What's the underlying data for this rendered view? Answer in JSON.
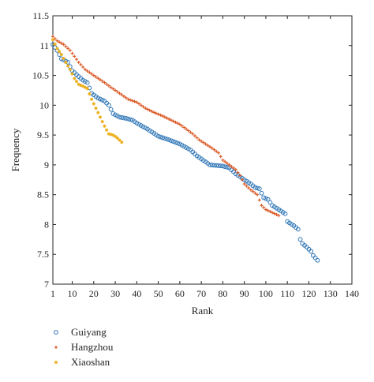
{
  "chart_data": {
    "type": "scatter",
    "xlabel": "Rank",
    "ylabel": "Frequency",
    "xlim": [
      1,
      140
    ],
    "ylim": [
      7,
      11.5
    ],
    "xticks": [
      1,
      10,
      20,
      30,
      40,
      50,
      60,
      70,
      80,
      90,
      100,
      110,
      120,
      130,
      140
    ],
    "yticks": [
      7,
      7.5,
      8,
      8.5,
      9,
      9.5,
      10,
      10.5,
      11,
      11.5
    ],
    "legend_position": "bottom-left-outside",
    "series": [
      {
        "name": "Guiyang",
        "marker": "circle-open",
        "color": "#2e75b6",
        "anchors": [
          [
            1,
            11.02
          ],
          [
            3,
            10.92
          ],
          [
            5,
            10.78
          ],
          [
            8,
            10.72
          ],
          [
            10,
            10.58
          ],
          [
            13,
            10.48
          ],
          [
            15,
            10.42
          ],
          [
            17,
            10.38
          ],
          [
            19,
            10.2
          ],
          [
            22,
            10.12
          ],
          [
            25,
            10.07
          ],
          [
            27,
            10.0
          ],
          [
            29,
            9.86
          ],
          [
            32,
            9.8
          ],
          [
            35,
            9.78
          ],
          [
            38,
            9.75
          ],
          [
            40,
            9.7
          ],
          [
            45,
            9.6
          ],
          [
            50,
            9.48
          ],
          [
            55,
            9.42
          ],
          [
            60,
            9.35
          ],
          [
            65,
            9.25
          ],
          [
            68,
            9.15
          ],
          [
            70,
            9.1
          ],
          [
            72,
            9.05
          ],
          [
            74,
            9.0
          ],
          [
            80,
            8.98
          ],
          [
            83,
            8.95
          ],
          [
            86,
            8.85
          ],
          [
            90,
            8.75
          ],
          [
            93,
            8.68
          ],
          [
            95,
            8.62
          ],
          [
            97,
            8.6
          ],
          [
            99,
            8.45
          ],
          [
            101,
            8.42
          ],
          [
            103,
            8.32
          ],
          [
            106,
            8.25
          ],
          [
            109,
            8.18
          ],
          [
            110,
            8.05
          ],
          [
            113,
            7.98
          ],
          [
            115,
            7.92
          ],
          [
            116,
            7.75
          ],
          [
            117,
            7.68
          ],
          [
            119,
            7.62
          ],
          [
            121,
            7.55
          ],
          [
            122,
            7.48
          ],
          [
            124,
            7.4
          ]
        ]
      },
      {
        "name": "Hangzhou",
        "marker": "plus",
        "color": "#d9531e",
        "anchors": [
          [
            1,
            11.15
          ],
          [
            3,
            11.08
          ],
          [
            6,
            11.02
          ],
          [
            9,
            10.92
          ],
          [
            11,
            10.82
          ],
          [
            13,
            10.72
          ],
          [
            16,
            10.6
          ],
          [
            20,
            10.5
          ],
          [
            25,
            10.38
          ],
          [
            28,
            10.3
          ],
          [
            32,
            10.2
          ],
          [
            36,
            10.1
          ],
          [
            40,
            10.05
          ],
          [
            44,
            9.95
          ],
          [
            48,
            9.88
          ],
          [
            52,
            9.82
          ],
          [
            56,
            9.75
          ],
          [
            60,
            9.68
          ],
          [
            63,
            9.6
          ],
          [
            66,
            9.52
          ],
          [
            69,
            9.42
          ],
          [
            72,
            9.35
          ],
          [
            75,
            9.28
          ],
          [
            78,
            9.2
          ],
          [
            80,
            9.08
          ],
          [
            83,
            9.0
          ],
          [
            86,
            8.92
          ],
          [
            88,
            8.82
          ],
          [
            90,
            8.68
          ],
          [
            93,
            8.58
          ],
          [
            96,
            8.5
          ],
          [
            98,
            8.32
          ],
          [
            100,
            8.25
          ],
          [
            103,
            8.2
          ],
          [
            106,
            8.15
          ]
        ]
      },
      {
        "name": "Xiaoshan",
        "marker": "asterisk",
        "color": "#edb120",
        "anchors": [
          [
            1,
            11.1
          ],
          [
            3,
            10.95
          ],
          [
            5,
            10.85
          ],
          [
            7,
            10.72
          ],
          [
            9,
            10.6
          ],
          [
            11,
            10.45
          ],
          [
            13,
            10.35
          ],
          [
            15,
            10.32
          ],
          [
            17,
            10.28
          ],
          [
            19,
            10.1
          ],
          [
            21,
            9.95
          ],
          [
            23,
            9.8
          ],
          [
            25,
            9.65
          ],
          [
            27,
            9.52
          ],
          [
            29,
            9.5
          ],
          [
            31,
            9.45
          ],
          [
            33,
            9.38
          ]
        ]
      }
    ]
  }
}
